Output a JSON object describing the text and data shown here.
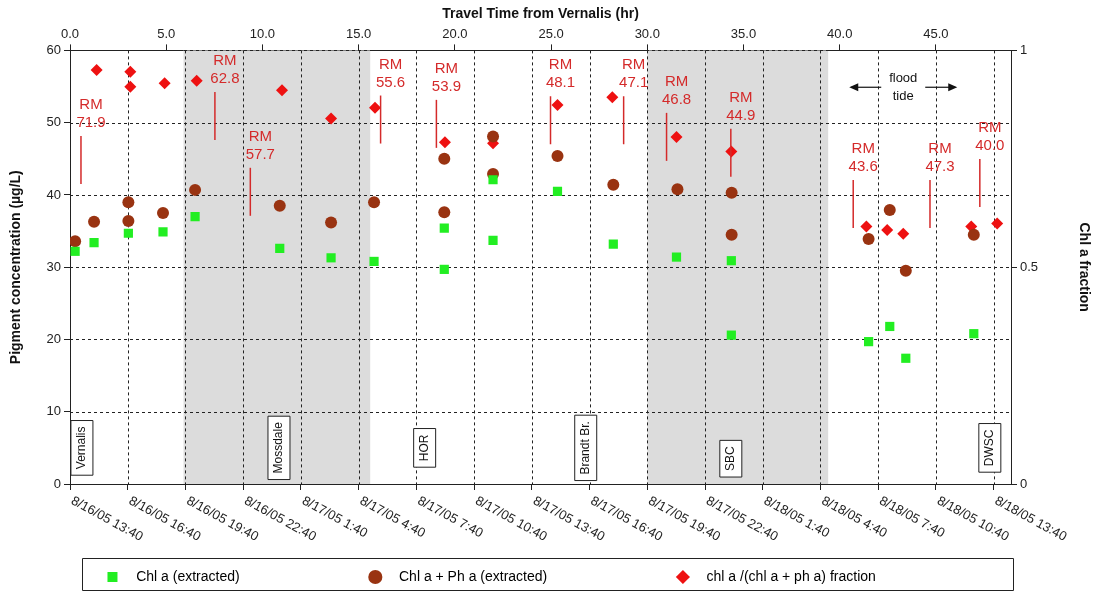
{
  "chart_data": {
    "type": "scatter",
    "x2label": "Travel Time from Vernalis (hr)",
    "ylabel": "Pigment concentration (µg/L)",
    "y2label": "Chl a fraction",
    "xlim": [
      "--08-16T13:40",
      "--08-18T14:34"
    ],
    "xticks": [
      {
        "value": "--08-16T13:40",
        "label": "8/16/05 13:40"
      },
      {
        "value": "--08-16T16:40",
        "label": "8/16/05 16:40"
      },
      {
        "value": "--08-16T19:40",
        "label": "8/16/05 19:40"
      },
      {
        "value": "--08-16T22:40",
        "label": "8/16/05 22:40"
      },
      {
        "value": "--08-17T01:40",
        "label": "8/17/05 1:40"
      },
      {
        "value": "--08-17T04:40",
        "label": "8/17/05 4:40"
      },
      {
        "value": "--08-17T07:40",
        "label": "8/17/05 7:40"
      },
      {
        "value": "--08-17T10:40",
        "label": "8/17/05 10:40"
      },
      {
        "value": "--08-17T13:40",
        "label": "8/17/05 13:40"
      },
      {
        "value": "--08-17T16:40",
        "label": "8/17/05 16:40"
      },
      {
        "value": "--08-17T19:40",
        "label": "8/17/05 19:40"
      },
      {
        "value": "--08-17T22:40",
        "label": "8/17/05 22:40"
      },
      {
        "value": "--08-18T01:40",
        "label": "8/18/05 1:40"
      },
      {
        "value": "--08-18T04:40",
        "label": "8/18/05 4:40"
      },
      {
        "value": "--08-18T07:40",
        "label": "8/18/05 7:40"
      },
      {
        "value": "--08-18T10:40",
        "label": "8/18/05 10:40"
      },
      {
        "value": "--08-18T13:40",
        "label": "8/18/05 13:40"
      }
    ],
    "x2lim": [
      0,
      48.9
    ],
    "x2ticks": [
      {
        "value": 0,
        "label": "0.0"
      },
      {
        "value": 5,
        "label": "5.0"
      },
      {
        "value": 10,
        "label": "10.0"
      },
      {
        "value": 15,
        "label": "15.0"
      },
      {
        "value": 20,
        "label": "20.0"
      },
      {
        "value": 25,
        "label": "25.0"
      },
      {
        "value": 30,
        "label": "30.0"
      },
      {
        "value": 35,
        "label": "35.0"
      },
      {
        "value": 40,
        "label": "40.0"
      },
      {
        "value": 45,
        "label": "45.0"
      }
    ],
    "ylim": [
      0,
      60
    ],
    "yticks": [
      0,
      10,
      20,
      30,
      40,
      50,
      60
    ],
    "y2lim": [
      0,
      1
    ],
    "y2ticks": [
      0,
      0.5,
      1
    ],
    "grid": true,
    "legend": "bottom",
    "series": [
      {
        "name": "Chl a (extracted)",
        "color": "#22ee22",
        "marker": "square",
        "x": [
          "--08-16T13:56",
          "--08-16T14:55",
          "--08-16T16:42",
          "--08-16T18:30",
          "--08-16T20:10",
          "--08-17T00:34",
          "--08-17T03:14",
          "--08-17T05:28",
          "--08-17T09:07",
          "--08-17T09:07",
          "--08-17T11:39",
          "--08-17T11:39",
          "--08-17T15:00",
          "--08-17T17:54",
          "--08-17T21:11",
          "--08-18T00:02",
          "--08-18T00:02",
          "--08-18T07:10",
          "--08-18T08:16",
          "--08-18T09:06",
          "--08-18T12:38"
        ],
        "values": [
          32.2,
          33.4,
          34.7,
          34.9,
          37.0,
          32.6,
          31.3,
          30.8,
          35.4,
          29.7,
          33.7,
          42.1,
          40.5,
          33.2,
          31.4,
          30.9,
          20.6,
          19.7,
          21.8,
          17.4,
          20.8
        ]
      },
      {
        "name": "Chl a + Ph a (extracted)",
        "color": "#993311",
        "marker": "circle",
        "x": [
          "--08-16T13:56",
          "--08-16T14:55",
          "--08-16T16:42",
          "--08-16T16:42",
          "--08-16T18:30",
          "--08-16T20:10",
          "--08-17T00:34",
          "--08-17T03:14",
          "--08-17T05:28",
          "--08-17T09:07",
          "--08-17T09:07",
          "--08-17T11:39",
          "--08-17T11:39",
          "--08-17T15:00",
          "--08-17T17:54",
          "--08-17T21:14",
          "--08-18T00:03",
          "--08-18T00:03",
          "--08-18T07:10",
          "--08-18T08:16",
          "--08-18T09:06",
          "--08-18T12:38"
        ],
        "values": [
          33.6,
          36.3,
          39.0,
          36.4,
          37.5,
          40.7,
          38.5,
          36.2,
          39.0,
          45.0,
          37.6,
          48.1,
          42.9,
          45.4,
          41.4,
          40.8,
          40.3,
          34.5,
          33.9,
          37.9,
          29.5,
          34.5
        ]
      },
      {
        "name": "chl a /(chl a + ph a) fraction",
        "color": "#ee1111",
        "marker": "diamond",
        "axis": "y2",
        "x": [
          "--08-16T15:03",
          "--08-16T16:48",
          "--08-16T16:48",
          "--08-16T18:35",
          "--08-16T20:15",
          "--08-17T00:41",
          "--08-17T03:14",
          "--08-17T05:31",
          "--08-17T09:09",
          "--08-17T11:39",
          "--08-17T15:00",
          "--08-17T17:51",
          "--08-17T21:11",
          "--08-18T00:02",
          "--08-18T07:03",
          "--08-18T08:08",
          "--08-18T08:58",
          "--08-18T12:30",
          "--08-18T13:51"
        ],
        "values": [
          0.955,
          0.951,
          0.916,
          0.924,
          0.93,
          0.908,
          0.843,
          0.868,
          0.788,
          0.786,
          0.874,
          0.892,
          0.8,
          0.767,
          0.594,
          0.586,
          0.577,
          0.594,
          0.601
        ]
      }
    ],
    "bands": [
      {
        "axis": "x",
        "from": "--08-16T19:34",
        "to": "--08-17T05:16",
        "color": "#dcdcdc"
      },
      {
        "axis": "x",
        "from": "--08-17T19:40",
        "to": "--08-18T05:04",
        "color": "#dcdcdc"
      }
    ],
    "annotations": [
      "RM 71.9",
      "RM 62.8",
      "RM 57.7",
      "RM 55.6",
      "RM 53.9",
      "RM 48.1",
      "RM 47.1",
      "RM 46.8",
      "RM 44.9",
      "RM 43.6",
      "RM 47.3",
      "RM 40.0",
      "flood tide",
      "Vernalis",
      "Mossdale",
      "HOR",
      "Brandt Br.",
      "SBC",
      "DWSC"
    ]
  }
}
